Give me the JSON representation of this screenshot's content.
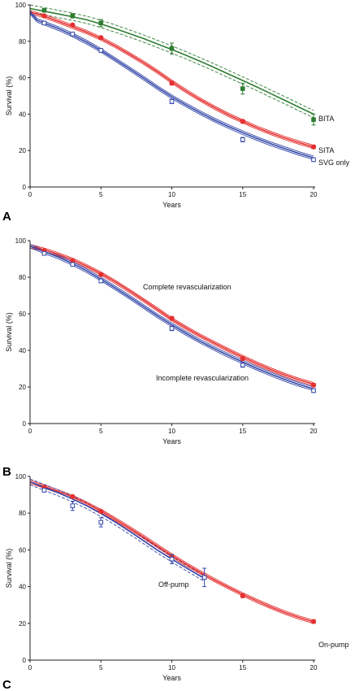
{
  "colors": {
    "green": "#2e7d32",
    "red": "#e53030",
    "blue": "#3347a8",
    "axis": "#222222"
  },
  "chart_data": [
    {
      "type": "line",
      "panel_label": "A",
      "xlabel": "Years",
      "ylabel": "Survival (%)",
      "xlim": [
        0,
        20
      ],
      "ylim": [
        0,
        100
      ],
      "xticks": [
        0,
        5,
        10,
        15,
        20
      ],
      "yticks": [
        0,
        20,
        40,
        60,
        80,
        100
      ],
      "series": [
        {
          "name": "BITA",
          "color": "green",
          "dashed_ci": true,
          "curve_x": [
            0,
            1,
            2,
            3,
            4,
            5,
            6,
            7,
            8,
            9,
            10,
            11,
            12,
            13,
            14,
            15,
            16,
            17,
            18,
            19,
            20
          ],
          "curve_y": [
            98,
            96.5,
            95,
            93.5,
            91.8,
            89.5,
            87,
            84.3,
            81.5,
            78.5,
            75.5,
            72.3,
            69,
            65.6,
            62,
            58.5,
            54.9,
            51.2,
            47.5,
            43.7,
            40
          ],
          "ci_width": 2,
          "points": [
            {
              "x": 1,
              "y": 97,
              "err": 1
            },
            {
              "x": 3,
              "y": 94,
              "err": 1.2
            },
            {
              "x": 5,
              "y": 90,
              "err": 2
            },
            {
              "x": 10,
              "y": 76,
              "err": 3
            },
            {
              "x": 15,
              "y": 54,
              "err": 3
            },
            {
              "x": 20,
              "y": 37,
              "err": 3
            }
          ]
        },
        {
          "name": "SITA",
          "color": "red",
          "dashed_ci": false,
          "curve_x": [
            0,
            1,
            2,
            3,
            4,
            5,
            6,
            7,
            8,
            9,
            10,
            11,
            12,
            13,
            14,
            15,
            16,
            17,
            18,
            19,
            20
          ],
          "curve_y": [
            96,
            93.8,
            91,
            88,
            85,
            81.5,
            77.5,
            73,
            68.3,
            63.2,
            57.8,
            52.7,
            48,
            43.6,
            39.6,
            36,
            32.6,
            29.6,
            26.8,
            24.3,
            22
          ],
          "ci_width": 0.9,
          "points": [
            {
              "x": 1,
              "y": 94,
              "err": 0.6
            },
            {
              "x": 3,
              "y": 89,
              "err": 0.7
            },
            {
              "x": 5,
              "y": 82,
              "err": 0.8
            },
            {
              "x": 10,
              "y": 57,
              "err": 1
            },
            {
              "x": 15,
              "y": 36,
              "err": 1
            },
            {
              "x": 20,
              "y": 22,
              "err": 1
            }
          ]
        },
        {
          "name": "SVG only",
          "color": "blue",
          "dashed_ci": false,
          "curve_x": [
            0,
            0.5,
            1,
            2,
            3,
            4,
            5,
            6,
            7,
            8,
            9,
            10,
            11,
            12,
            13,
            14,
            15,
            16,
            17,
            18,
            19,
            20
          ],
          "curve_y": [
            96,
            91.5,
            90,
            87,
            83.5,
            79.5,
            75,
            70,
            65,
            59.8,
            54.5,
            49.5,
            45,
            40.8,
            36.8,
            33.2,
            29.8,
            26.6,
            23.7,
            21,
            18.3,
            16
          ],
          "ci_width": 1,
          "points": [
            {
              "x": 1,
              "y": 90,
              "err": 0.7
            },
            {
              "x": 3,
              "y": 84,
              "err": 0.8
            },
            {
              "x": 5,
              "y": 75,
              "err": 1
            },
            {
              "x": 10,
              "y": 47,
              "err": 1.2
            },
            {
              "x": 15,
              "y": 26,
              "err": 1.2
            },
            {
              "x": 20,
              "y": 15,
              "err": 1
            }
          ]
        }
      ]
    },
    {
      "type": "line",
      "panel_label": "B",
      "xlabel": "Years",
      "ylabel": "Survival (%)",
      "xlim": [
        0,
        20
      ],
      "ylim": [
        0,
        100
      ],
      "xticks": [
        0,
        5,
        10,
        15,
        20
      ],
      "yticks": [
        0,
        20,
        40,
        60,
        80,
        100
      ],
      "series": [
        {
          "name": "Complete revascularization",
          "color": "red",
          "dashed_ci": false,
          "curve_x": [
            0,
            1,
            2,
            3,
            4,
            5,
            6,
            7,
            8,
            9,
            10,
            11,
            12,
            13,
            14,
            15,
            16,
            17,
            18,
            19,
            20
          ],
          "curve_y": [
            97,
            95,
            92.5,
            89.5,
            86,
            82,
            77.5,
            72.6,
            67.5,
            62.3,
            57,
            52.3,
            48,
            44,
            40.1,
            36.4,
            32.8,
            29.5,
            26.5,
            23.8,
            21.5
          ],
          "ci_width": 0.9,
          "points": [
            {
              "x": 1,
              "y": 94.5,
              "err": 0.6
            },
            {
              "x": 3,
              "y": 89,
              "err": 0.7
            },
            {
              "x": 5,
              "y": 81.5,
              "err": 0.8
            },
            {
              "x": 10,
              "y": 57.5,
              "err": 1
            },
            {
              "x": 15,
              "y": 35.5,
              "err": 1
            },
            {
              "x": 20,
              "y": 21,
              "err": 1
            }
          ]
        },
        {
          "name": "Incomplete revascularization",
          "color": "blue",
          "dashed_ci": false,
          "curve_x": [
            0,
            1,
            2,
            3,
            4,
            5,
            6,
            7,
            8,
            9,
            10,
            11,
            12,
            13,
            14,
            15,
            16,
            17,
            18,
            19,
            20
          ],
          "curve_y": [
            97,
            94,
            91,
            87.5,
            83.5,
            79,
            74.2,
            69.2,
            64,
            58.8,
            54,
            49.3,
            45,
            41,
            37.2,
            33.6,
            30.2,
            27,
            24,
            21.3,
            19
          ],
          "ci_width": 1,
          "points": [
            {
              "x": 1,
              "y": 93,
              "err": 0.7
            },
            {
              "x": 3,
              "y": 87,
              "err": 0.8
            },
            {
              "x": 5,
              "y": 78,
              "err": 1
            },
            {
              "x": 10,
              "y": 52,
              "err": 1.2
            },
            {
              "x": 15,
              "y": 32,
              "err": 1.2
            },
            {
              "x": 20,
              "y": 18,
              "err": 1
            }
          ]
        }
      ]
    },
    {
      "type": "line",
      "panel_label": "C",
      "xlabel": "Years",
      "ylabel": "Survival (%)",
      "xlim": [
        0,
        20
      ],
      "ylim": [
        0,
        100
      ],
      "xticks": [
        0,
        5,
        10,
        15,
        20
      ],
      "yticks": [
        0,
        20,
        40,
        60,
        80,
        100
      ],
      "series": [
        {
          "name": "On-pump",
          "color": "red",
          "dashed_ci": false,
          "curve_x": [
            0,
            1,
            2,
            3,
            4,
            5,
            6,
            7,
            8,
            9,
            10,
            11,
            12,
            13,
            14,
            15,
            16,
            17,
            18,
            19,
            20
          ],
          "curve_y": [
            97,
            94.5,
            91.8,
            88.8,
            85.2,
            81.2,
            76.7,
            72,
            67.1,
            62,
            57,
            52.2,
            47.8,
            43.6,
            39.6,
            35.8,
            32.2,
            28.9,
            25.8,
            23.1,
            20.8
          ],
          "ci_width": 0.9,
          "points": [
            {
              "x": 1,
              "y": 94,
              "err": 0.6
            },
            {
              "x": 3,
              "y": 89,
              "err": 0.7
            },
            {
              "x": 5,
              "y": 81,
              "err": 0.8
            },
            {
              "x": 10,
              "y": 56.5,
              "err": 1
            },
            {
              "x": 15,
              "y": 35,
              "err": 1
            },
            {
              "x": 20,
              "y": 21,
              "err": 1
            }
          ]
        },
        {
          "name": "Off-pump",
          "color": "blue",
          "dashed_ci": true,
          "curve_x": [
            0,
            1,
            2,
            3,
            4,
            5,
            6,
            7,
            8,
            9,
            10,
            11,
            12,
            12.3
          ],
          "curve_y": [
            97,
            94,
            91,
            87.7,
            84,
            79.8,
            75.2,
            70.2,
            65,
            59.8,
            55,
            50.3,
            45.8,
            44.5
          ],
          "ci_width": 1.6,
          "points": [
            {
              "x": 1,
              "y": 92.5,
              "err": 1
            },
            {
              "x": 3,
              "y": 84,
              "err": 2.5
            },
            {
              "x": 5,
              "y": 75,
              "err": 2.5
            },
            {
              "x": 10,
              "y": 55,
              "err": 2.5
            },
            {
              "x": 12.3,
              "y": 45,
              "err": 5
            }
          ]
        }
      ]
    }
  ]
}
